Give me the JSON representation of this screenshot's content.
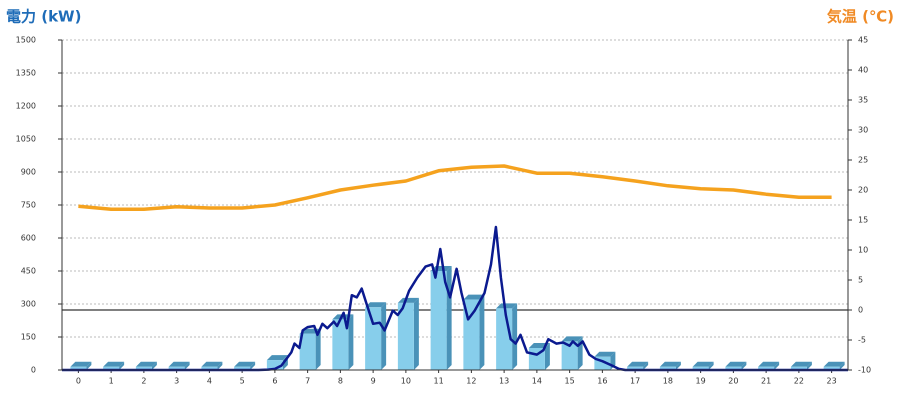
{
  "chart_data": {
    "type": "bar-line",
    "y_label": "電力 (kW)",
    "y2_label": "気温 (℃)",
    "xlim": [
      -0.5,
      23.5
    ],
    "xticks": [
      0,
      1,
      2,
      3,
      4,
      5,
      6,
      7,
      8,
      9,
      10,
      11,
      12,
      13,
      14,
      15,
      16,
      17,
      18,
      19,
      20,
      21,
      22,
      23
    ],
    "ylim": [
      0,
      1500
    ],
    "yticks": [
      0,
      150,
      300,
      450,
      600,
      750,
      900,
      1050,
      1200,
      1350,
      1500
    ],
    "y2lim": [
      -10,
      45
    ],
    "y2ticks": [
      -10,
      -5,
      0,
      5,
      10,
      15,
      20,
      25,
      30,
      35,
      40,
      45
    ],
    "grid": true,
    "y2_zero_line": true,
    "y_label_color": "#1e6cb8",
    "y2_label_color": "#f08a24",
    "series": [
      {
        "type": "bar",
        "color": "#87ceeb",
        "side_color": "#4a92b8",
        "x": [
          0,
          1,
          2,
          3,
          4,
          5,
          6,
          7,
          8,
          9,
          10,
          11,
          12,
          13,
          14,
          15,
          16,
          17,
          18,
          19,
          20,
          21,
          22,
          23
        ],
        "values": [
          15,
          15,
          15,
          15,
          15,
          15,
          45,
          165,
          230,
          285,
          305,
          450,
          320,
          280,
          100,
          130,
          60,
          15,
          15,
          15,
          15,
          15,
          15,
          15
        ]
      },
      {
        "type": "line",
        "color": "#0b1a8f",
        "x": [
          -0.5,
          0,
          1,
          2,
          3,
          4,
          5,
          5.5,
          5.8,
          6,
          6.2,
          6.5,
          6.6,
          6.75,
          6.85,
          7,
          7.2,
          7.3,
          7.45,
          7.6,
          7.8,
          7.9,
          8.1,
          8.2,
          8.35,
          8.5,
          8.65,
          8.8,
          9,
          9.2,
          9.35,
          9.6,
          9.75,
          9.9,
          10.1,
          10.35,
          10.6,
          10.8,
          10.9,
          11.05,
          11.2,
          11.35,
          11.55,
          11.7,
          11.9,
          12.1,
          12.4,
          12.6,
          12.75,
          12.9,
          13.05,
          13.2,
          13.35,
          13.5,
          13.7,
          14,
          14.2,
          14.35,
          14.6,
          14.8,
          15,
          15.1,
          15.25,
          15.4,
          15.6,
          15.8,
          16,
          16.3,
          16.5,
          16.7,
          17,
          18,
          19,
          20,
          21,
          22,
          23,
          23.5
        ],
        "values": [
          0,
          0,
          0,
          0,
          0,
          0,
          0,
          0,
          2,
          5,
          20,
          80,
          120,
          100,
          180,
          195,
          200,
          160,
          210,
          190,
          220,
          200,
          260,
          190,
          340,
          330,
          370,
          300,
          210,
          215,
          180,
          270,
          250,
          280,
          360,
          420,
          470,
          480,
          420,
          550,
          400,
          330,
          460,
          350,
          230,
          270,
          350,
          480,
          650,
          420,
          250,
          140,
          120,
          160,
          80,
          70,
          90,
          140,
          120,
          125,
          110,
          130,
          110,
          130,
          70,
          50,
          40,
          20,
          5,
          0,
          0,
          0,
          0,
          0,
          0,
          0,
          0,
          0
        ]
      },
      {
        "type": "line",
        "color": "#f5a21e",
        "axis": "y2",
        "x": [
          0,
          1,
          2,
          3,
          4,
          5,
          6,
          7,
          8,
          9,
          10,
          11,
          12,
          13,
          14,
          15,
          16,
          17,
          18,
          19,
          20,
          21,
          22,
          23
        ],
        "values": [
          17.3,
          16.8,
          16.8,
          17.2,
          17,
          17,
          17.5,
          18.7,
          20,
          20.8,
          21.5,
          23.2,
          23.8,
          24,
          22.8,
          22.8,
          22.2,
          21.5,
          20.7,
          20.2,
          20,
          19.3,
          18.8,
          18.8
        ]
      }
    ]
  }
}
